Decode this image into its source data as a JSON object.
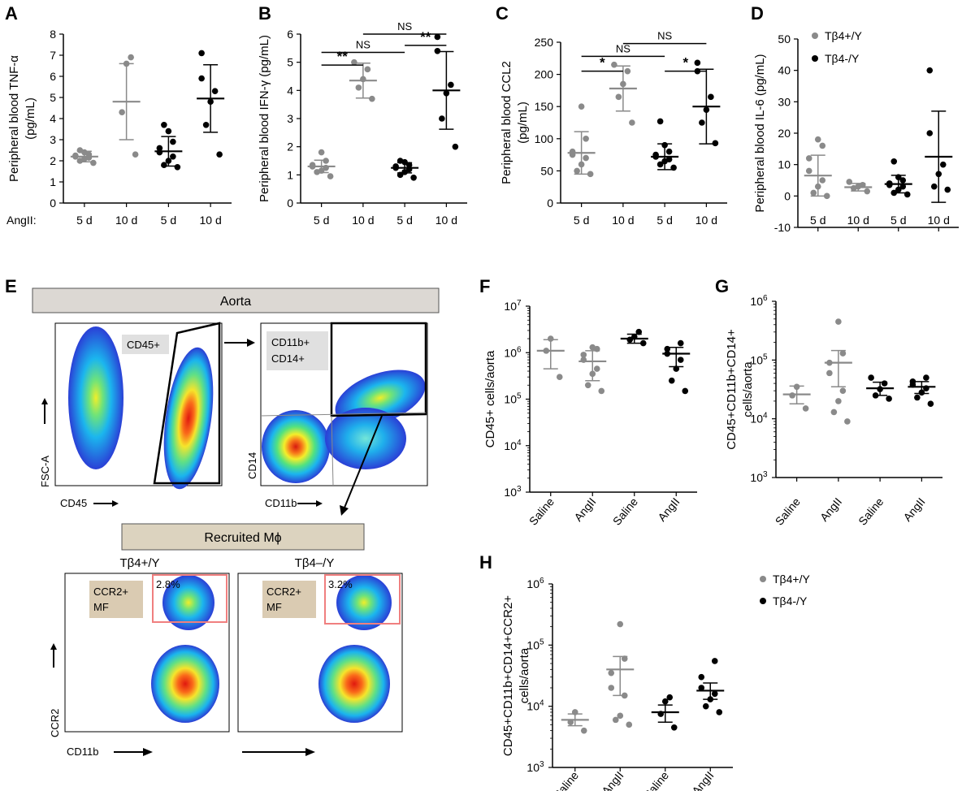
{
  "figure": {
    "panel_letters": [
      "A",
      "B",
      "C",
      "D",
      "E",
      "F",
      "G",
      "H"
    ],
    "legend_wt": "Tβ4+/Y",
    "legend_ko": "Tβ4-/Y",
    "colors": {
      "wt": "#8a8a8a",
      "ko": "#000000",
      "gate": "#f07f7f",
      "banner_aorta": "#dcd8d3",
      "banner_recruited": "#dcd3bf",
      "ccr2_tag": "#dacbb2",
      "ccr2_text": "#8b3a2a"
    }
  },
  "panelE": {
    "aorta_label": "Aorta",
    "recruited_label": "Recruited Mϕ",
    "gate_cd45": "CD45+",
    "gate_cd11b_cd14_line1": "CD11b+",
    "gate_cd11b_cd14_line2": "CD14+",
    "plot1_xaxis": "CD45",
    "plot1_yaxis": "FSC-A",
    "plot2_xaxis": "CD11b",
    "plot2_yaxis": "CD14",
    "plot3_title": "Tβ4+/Y",
    "plot4_title": "Tβ4–/Y",
    "ccr2_tag_line1": "CCR2+",
    "ccr2_tag_line2": "MF",
    "plot3_percent": "2.8%",
    "plot4_percent": "3.2%",
    "plot3_xaxis": "CD11b",
    "plot3_yaxis": "CCR2"
  },
  "chart_data": [
    {
      "panel": "A",
      "type": "scatter",
      "ylabel": "Peripheral blood TNF-α\n(pg/mL)",
      "row_label": "AngII:",
      "categories": [
        "5 d",
        "10 d",
        "5 d",
        "10 d"
      ],
      "ylim": [
        0,
        8
      ],
      "yticks": [
        0,
        1,
        2,
        3,
        4,
        5,
        6,
        7,
        8
      ],
      "series": [
        {
          "group": "wt",
          "category": 0,
          "mean": 2.2,
          "error": 0.25,
          "points": [
            1.9,
            2.0,
            2.1,
            2.15,
            2.2,
            2.25,
            2.3,
            2.4,
            2.5
          ]
        },
        {
          "group": "wt",
          "category": 1,
          "mean": 4.8,
          "error": 1.8,
          "points": [
            2.3,
            4.3,
            6.6,
            6.9
          ]
        },
        {
          "group": "ko",
          "category": 2,
          "mean": 2.45,
          "error": 0.7,
          "points": [
            1.7,
            1.8,
            2.0,
            2.2,
            2.4,
            2.6,
            2.9,
            3.4,
            3.7
          ]
        },
        {
          "group": "ko",
          "category": 3,
          "mean": 4.95,
          "error": 1.6,
          "points": [
            2.3,
            3.7,
            4.8,
            5.3,
            5.9,
            7.1
          ]
        }
      ],
      "significance": []
    },
    {
      "panel": "B",
      "type": "scatter",
      "ylabel": "Peripheral blood IFN-γ (pg/mL)",
      "categories": [
        "5 d",
        "10 d",
        "5 d",
        "10 d"
      ],
      "ylim": [
        0,
        6
      ],
      "yticks": [
        0,
        1,
        2,
        3,
        4,
        5,
        6
      ],
      "series": [
        {
          "group": "wt",
          "category": 0,
          "mean": 1.3,
          "error": 0.22,
          "points": [
            0.95,
            1.1,
            1.15,
            1.25,
            1.3,
            1.35,
            1.5,
            1.8
          ]
        },
        {
          "group": "wt",
          "category": 1,
          "mean": 4.35,
          "error": 0.62,
          "points": [
            3.7,
            4.1,
            4.4,
            4.75,
            5.0
          ]
        },
        {
          "group": "ko",
          "category": 2,
          "mean": 1.25,
          "error": 0.18,
          "points": [
            0.9,
            1.0,
            1.1,
            1.2,
            1.25,
            1.3,
            1.35,
            1.45,
            1.5
          ]
        },
        {
          "group": "ko",
          "category": 3,
          "mean": 4.0,
          "error": 1.38,
          "points": [
            2.0,
            3.0,
            3.9,
            4.2,
            5.4,
            5.9
          ]
        }
      ],
      "significance": [
        {
          "label": "**",
          "from": 0,
          "to": 1,
          "y": 4.9
        },
        {
          "label": "NS",
          "from": 0,
          "to": 2,
          "y": 5.35
        },
        {
          "label": "**",
          "from": 2,
          "to": 3,
          "y": 5.6
        },
        {
          "label": "NS",
          "from": 1,
          "to": 3,
          "y": 6.0
        }
      ]
    },
    {
      "panel": "C",
      "type": "scatter",
      "ylabel": "Peripheral blood CCL2\n(pg/mL)",
      "categories": [
        "5 d",
        "10 d",
        "5 d",
        "10 d"
      ],
      "ylim": [
        0,
        250
      ],
      "yticks": [
        0,
        50,
        100,
        150,
        200,
        250
      ],
      "series": [
        {
          "group": "wt",
          "category": 0,
          "mean": 78,
          "error": 33,
          "points": [
            45,
            50,
            60,
            70,
            75,
            80,
            100,
            150
          ]
        },
        {
          "group": "wt",
          "category": 1,
          "mean": 178,
          "error": 35,
          "points": [
            125,
            165,
            185,
            205,
            215
          ]
        },
        {
          "group": "ko",
          "category": 2,
          "mean": 72,
          "error": 20,
          "points": [
            55,
            60,
            65,
            68,
            72,
            75,
            80,
            90,
            127
          ]
        },
        {
          "group": "ko",
          "category": 3,
          "mean": 150,
          "error": 58,
          "points": [
            93,
            125,
            145,
            165,
            205,
            218
          ]
        }
      ],
      "significance": [
        {
          "label": "*",
          "from": 0,
          "to": 1,
          "y": 205
        },
        {
          "label": "NS",
          "from": 0,
          "to": 2,
          "y": 228
        },
        {
          "label": "*",
          "from": 2,
          "to": 3,
          "y": 205
        },
        {
          "label": "NS",
          "from": 1,
          "to": 3,
          "y": 248
        }
      ]
    },
    {
      "panel": "D",
      "type": "scatter",
      "ylabel": "Peripheral blood IL-6 (pg/mL)",
      "categories": [
        "5 d",
        "10 d",
        "5 d",
        "10 d"
      ],
      "ylim": [
        -10,
        50
      ],
      "yticks": [
        -10,
        0,
        10,
        20,
        30,
        40,
        50
      ],
      "series": [
        {
          "group": "wt",
          "category": 0,
          "mean": 6.5,
          "error": 6.5,
          "points": [
            0,
            1,
            3,
            5,
            8,
            12,
            16,
            18
          ]
        },
        {
          "group": "wt",
          "category": 1,
          "mean": 2.8,
          "error": 1.2,
          "points": [
            1.5,
            2.5,
            3,
            3.5,
            4.5
          ]
        },
        {
          "group": "ko",
          "category": 2,
          "mean": 3.8,
          "error": 2.8,
          "points": [
            0.5,
            1,
            2,
            3,
            3.5,
            4,
            5,
            6,
            11
          ]
        },
        {
          "group": "ko",
          "category": 3,
          "mean": 12.5,
          "error": 14.5,
          "points": [
            2,
            3,
            7,
            10,
            20,
            40
          ]
        }
      ],
      "significance": []
    },
    {
      "panel": "F",
      "type": "scatter",
      "log": true,
      "ylabel": "CD45+ cells/aorta",
      "categories": [
        "Saline",
        "AngII",
        "Saline",
        "AngII"
      ],
      "ylim_exp": [
        3,
        7
      ],
      "yticks_exp": [
        3,
        4,
        5,
        6,
        7
      ],
      "series": [
        {
          "group": "wt",
          "category": 0,
          "mean": 1100000.0,
          "low": 450000.0,
          "high": 1900000.0,
          "points": [
            300000.0,
            1100000.0,
            2000000.0
          ]
        },
        {
          "group": "wt",
          "category": 1,
          "mean": 650000.0,
          "low": 250000.0,
          "high": 1100000.0,
          "points": [
            150000.0,
            200000.0,
            350000.0,
            450000.0,
            700000.0,
            900000.0,
            1200000.0,
            1300000.0
          ]
        },
        {
          "group": "ko",
          "category": 2,
          "mean": 2000000.0,
          "low": 1600000.0,
          "high": 2500000.0,
          "points": [
            1600000.0,
            1900000.0,
            2200000.0,
            2800000.0
          ]
        },
        {
          "group": "ko",
          "category": 3,
          "mean": 950000.0,
          "low": 500000.0,
          "high": 1300000.0,
          "points": [
            150000.0,
            250000.0,
            450000.0,
            700000.0,
            950000.0,
            1200000.0,
            1600000.0
          ]
        }
      ]
    },
    {
      "panel": "G",
      "type": "scatter",
      "log": true,
      "ylabel": "CD45+CD11b+CD14+\ncells/aorta",
      "categories": [
        "Saline",
        "AngII",
        "Saline",
        "AngII"
      ],
      "ylim_exp": [
        3,
        6
      ],
      "yticks_exp": [
        3,
        4,
        5,
        6
      ],
      "series": [
        {
          "group": "wt",
          "category": 0,
          "mean": 26000.0,
          "low": 18000.0,
          "high": 36000.0,
          "points": [
            15000.0,
            25000.0,
            35000.0
          ]
        },
        {
          "group": "wt",
          "category": 1,
          "mean": 90000.0,
          "low": 35000.0,
          "high": 145000.0,
          "points": [
            9000.0,
            13000.0,
            20000.0,
            30000.0,
            60000.0,
            90000.0,
            130000.0,
            450000.0
          ]
        },
        {
          "group": "ko",
          "category": 2,
          "mean": 33000.0,
          "low": 25000.0,
          "high": 42000.0,
          "points": [
            22000.0,
            25000.0,
            32000.0,
            40000.0,
            50000.0
          ]
        },
        {
          "group": "ko",
          "category": 3,
          "mean": 35000.0,
          "low": 27000.0,
          "high": 43000.0,
          "points": [
            18000.0,
            23000.0,
            28000.0,
            33000.0,
            38000.0,
            43000.0,
            50000.0
          ]
        }
      ]
    },
    {
      "panel": "H",
      "type": "scatter",
      "log": true,
      "ylabel": "CD45+CD11b+CD14+CCR2+\ncells/aorta",
      "categories": [
        "Saline",
        "AngII",
        "Saline",
        "AngII"
      ],
      "ylim_exp": [
        3,
        6
      ],
      "yticks_exp": [
        3,
        4,
        5,
        6
      ],
      "series": [
        {
          "group": "wt",
          "category": 0,
          "mean": 6000.0,
          "low": 4800.0,
          "high": 7500.0,
          "points": [
            4000.0,
            5500.0,
            8000.0
          ]
        },
        {
          "group": "wt",
          "category": 1,
          "mean": 40000.0,
          "low": 15000.0,
          "high": 65000.0,
          "points": [
            5000.0,
            6000.0,
            7000.0,
            15000.0,
            20000.0,
            35000.0,
            60000.0,
            220000.0
          ]
        },
        {
          "group": "ko",
          "category": 2,
          "mean": 8000.0,
          "low": 5500.0,
          "high": 10500.0,
          "points": [
            4500.0,
            7500.0,
            12000.0,
            14000.0
          ]
        },
        {
          "group": "ko",
          "category": 3,
          "mean": 18000.0,
          "low": 13000.0,
          "high": 24000.0,
          "points": [
            8000.0,
            10000.0,
            13000.0,
            16000.0,
            20000.0,
            30000.0,
            55000.0
          ]
        }
      ]
    }
  ]
}
